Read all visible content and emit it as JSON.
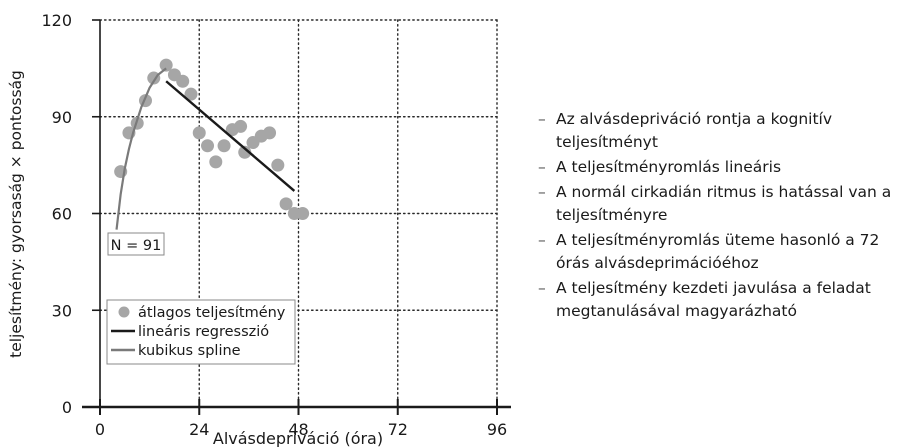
{
  "chart_data": {
    "type": "scatter",
    "xlabel": "Alvásdepriváció (óra)",
    "ylabel": "teljesítmény: gyorsaság × pontosság",
    "xlim": [
      0,
      96
    ],
    "ylim": [
      0,
      120
    ],
    "xticks": [
      0,
      24,
      48,
      72,
      96
    ],
    "yticks": [
      0,
      30,
      60,
      90,
      120
    ],
    "xtick_labels": [
      "0",
      "24",
      "48",
      "72",
      "96"
    ],
    "ytick_labels": [
      "0",
      "30",
      "60",
      "90",
      "120"
    ],
    "grid": true,
    "legend_position": "bottom-left",
    "annotation": "N = 91",
    "series": [
      {
        "name": "átlagos teljesítmény",
        "kind": "scatter",
        "color": "#a6a6a6",
        "x": [
          5,
          7,
          9,
          11,
          13,
          16,
          18,
          20,
          22,
          24,
          26,
          28,
          30,
          32,
          34,
          35,
          37,
          39,
          41,
          43,
          45,
          47,
          49
        ],
        "y": [
          73,
          85,
          88,
          95,
          102,
          106,
          103,
          101,
          97,
          85,
          81,
          76,
          81,
          86,
          87,
          79,
          82,
          84,
          85,
          75,
          63,
          60,
          60
        ]
      },
      {
        "name": "lineáris regresszió",
        "kind": "line",
        "color": "#1a1a1a",
        "x": [
          16,
          47
        ],
        "y": [
          101,
          67
        ]
      },
      {
        "name": "kubikus spline",
        "kind": "line",
        "color": "#7a7a7a",
        "x": [
          4,
          5,
          6,
          7,
          8,
          9,
          10,
          11,
          12,
          13,
          14,
          15,
          16
        ],
        "y": [
          55,
          66,
          74,
          80,
          85,
          89,
          93,
          96,
          99,
          101,
          103,
          104,
          105
        ]
      }
    ]
  },
  "bullets": [
    "Az alvásdepriváció rontja a kognitív teljesítményt",
    "A teljesítményromlás lineáris",
    "A normál cirkadián ritmus is hatással van a teljesítményre",
    "A teljesítményromlás üteme hasonló a 72 órás alvásdeprimációéhoz",
    "A teljesítmény kezdeti javulása a feladat megtanulásával magyarázható"
  ],
  "bullet_marker": "–"
}
